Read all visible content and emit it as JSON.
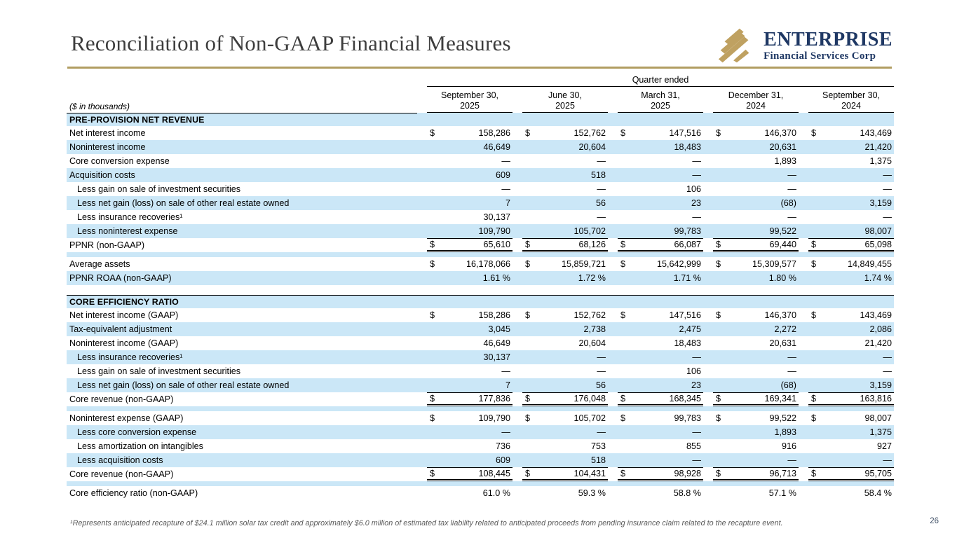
{
  "slide": {
    "title": "Reconciliation of Non-GAAP Financial Measures",
    "page_number": "26",
    "footnote": "¹Represents anticipated recapture of $24.1 million solar tax credit and approximately $6.0 million of estimated tax liability related to anticipated proceeds from pending insurance claim related to the recapture event.",
    "colors": {
      "accent_gold": "#b19d61",
      "row_blue": "#cbe7f7",
      "navy": "#1f3864"
    }
  },
  "logo": {
    "name": "ENTERPRISE",
    "subtitle": "Financial Services Corp",
    "icon": "gold-stripes-icon"
  },
  "table": {
    "units_label": "($ in thousands)",
    "group_header": "Quarter ended",
    "columns": [
      {
        "line1": "September 30,",
        "line2": "2025"
      },
      {
        "line1": "June 30,",
        "line2": "2025"
      },
      {
        "line1": "March 31,",
        "line2": "2025"
      },
      {
        "line1": "December 31,",
        "line2": "2024"
      },
      {
        "line1": "September 30,",
        "line2": "2024"
      }
    ],
    "rows": [
      {
        "type": "section",
        "label": "PRE-PROVISION NET REVENUE"
      },
      {
        "type": "data",
        "label": "Net interest income",
        "dollar": true,
        "shade": false,
        "values": [
          "158,286",
          "152,762",
          "147,516",
          "146,370",
          "143,469"
        ]
      },
      {
        "type": "data",
        "label": "Noninterest income",
        "shade": true,
        "values": [
          "46,649",
          "20,604",
          "18,483",
          "20,631",
          "21,420"
        ]
      },
      {
        "type": "data",
        "label": "Core conversion expense",
        "shade": false,
        "values": [
          "—",
          "—",
          "—",
          "1,893",
          "1,375"
        ]
      },
      {
        "type": "data",
        "label": "Acquisition costs",
        "shade": true,
        "values": [
          "609",
          "518",
          "—",
          "—",
          "—"
        ]
      },
      {
        "type": "data",
        "label": "Less gain on sale of investment securities",
        "indent": true,
        "shade": false,
        "values": [
          "—",
          "—",
          "106",
          "—",
          "—"
        ]
      },
      {
        "type": "data",
        "label": "Less net gain (loss) on sale of other real estate owned",
        "indent": true,
        "shade": true,
        "values": [
          "7",
          "56",
          "23",
          "(68)",
          "3,159"
        ]
      },
      {
        "type": "data",
        "label": "Less insurance recoveries¹",
        "indent": true,
        "shade": false,
        "values": [
          "30,137",
          "—",
          "—",
          "—",
          "—"
        ]
      },
      {
        "type": "data",
        "label": "Less noninterest expense",
        "indent": true,
        "shade": true,
        "values": [
          "109,790",
          "105,702",
          "99,783",
          "99,522",
          "98,007"
        ]
      },
      {
        "type": "data",
        "label": "PPNR (non-GAAP)",
        "dollar": true,
        "shade": false,
        "rule_top": true,
        "double_bottom": true,
        "values": [
          "65,610",
          "68,126",
          "66,087",
          "69,440",
          "65,098"
        ]
      },
      {
        "type": "spacer"
      },
      {
        "type": "data",
        "label": "Average assets",
        "dollar": true,
        "shade": false,
        "values": [
          "16,178,066",
          "15,859,721",
          "15,642,999",
          "15,309,577",
          "14,849,455"
        ]
      },
      {
        "type": "data",
        "label": "PPNR ROAA (non-GAAP)",
        "shade": true,
        "values": [
          "1.61 %",
          "1.72 %",
          "1.71 %",
          "1.80 %",
          "1.74 %"
        ]
      },
      {
        "type": "gap"
      },
      {
        "type": "section",
        "label": "CORE EFFICIENCY RATIO",
        "rule_top": true
      },
      {
        "type": "data",
        "label": "Net interest income (GAAP)",
        "dollar": true,
        "shade": false,
        "values": [
          "158,286",
          "152,762",
          "147,516",
          "146,370",
          "143,469"
        ]
      },
      {
        "type": "data",
        "label": "Tax-equivalent adjustment",
        "shade": true,
        "values": [
          "3,045",
          "2,738",
          "2,475",
          "2,272",
          "2,086"
        ]
      },
      {
        "type": "data",
        "label": "Noninterest income (GAAP)",
        "shade": false,
        "values": [
          "46,649",
          "20,604",
          "18,483",
          "20,631",
          "21,420"
        ]
      },
      {
        "type": "data",
        "label": "Less insurance recoveries¹",
        "indent": true,
        "shade": true,
        "values": [
          "30,137",
          "—",
          "—",
          "—",
          "—"
        ]
      },
      {
        "type": "data",
        "label": "Less gain on sale of investment securities",
        "indent": true,
        "shade": false,
        "values": [
          "—",
          "—",
          "106",
          "—",
          "—"
        ]
      },
      {
        "type": "data",
        "label": "Less net gain (loss) on sale of other real estate owned",
        "indent": true,
        "shade": true,
        "values": [
          "7",
          "56",
          "23",
          "(68)",
          "3,159"
        ]
      },
      {
        "type": "data",
        "label": "Core revenue (non-GAAP)",
        "dollar": true,
        "shade": false,
        "rule_top": true,
        "double_bottom": true,
        "values": [
          "177,836",
          "176,048",
          "168,345",
          "169,341",
          "163,816"
        ]
      },
      {
        "type": "spacer"
      },
      {
        "type": "data",
        "label": "Noninterest expense (GAAP)",
        "dollar": true,
        "shade": false,
        "values": [
          "109,790",
          "105,702",
          "99,783",
          "99,522",
          "98,007"
        ]
      },
      {
        "type": "data",
        "label": "Less core conversion expense",
        "indent": true,
        "shade": true,
        "values": [
          "—",
          "—",
          "—",
          "1,893",
          "1,375"
        ]
      },
      {
        "type": "data",
        "label": "Less amortization on intangibles",
        "indent": true,
        "shade": false,
        "values": [
          "736",
          "753",
          "855",
          "916",
          "927"
        ]
      },
      {
        "type": "data",
        "label": "Less acquisition costs",
        "indent": true,
        "shade": true,
        "values": [
          "609",
          "518",
          "—",
          "—",
          "—"
        ]
      },
      {
        "type": "data",
        "label": "Core revenue (non-GAAP)",
        "dollar": true,
        "shade": false,
        "rule_top": true,
        "double_bottom": true,
        "values": [
          "108,445",
          "104,431",
          "98,928",
          "96,713",
          "95,705"
        ]
      },
      {
        "type": "spacer"
      },
      {
        "type": "data",
        "label": "Core efficiency ratio (non-GAAP)",
        "shade": false,
        "values": [
          "61.0 %",
          "59.3 %",
          "58.8 %",
          "57.1 %",
          "58.4 %"
        ]
      }
    ]
  }
}
